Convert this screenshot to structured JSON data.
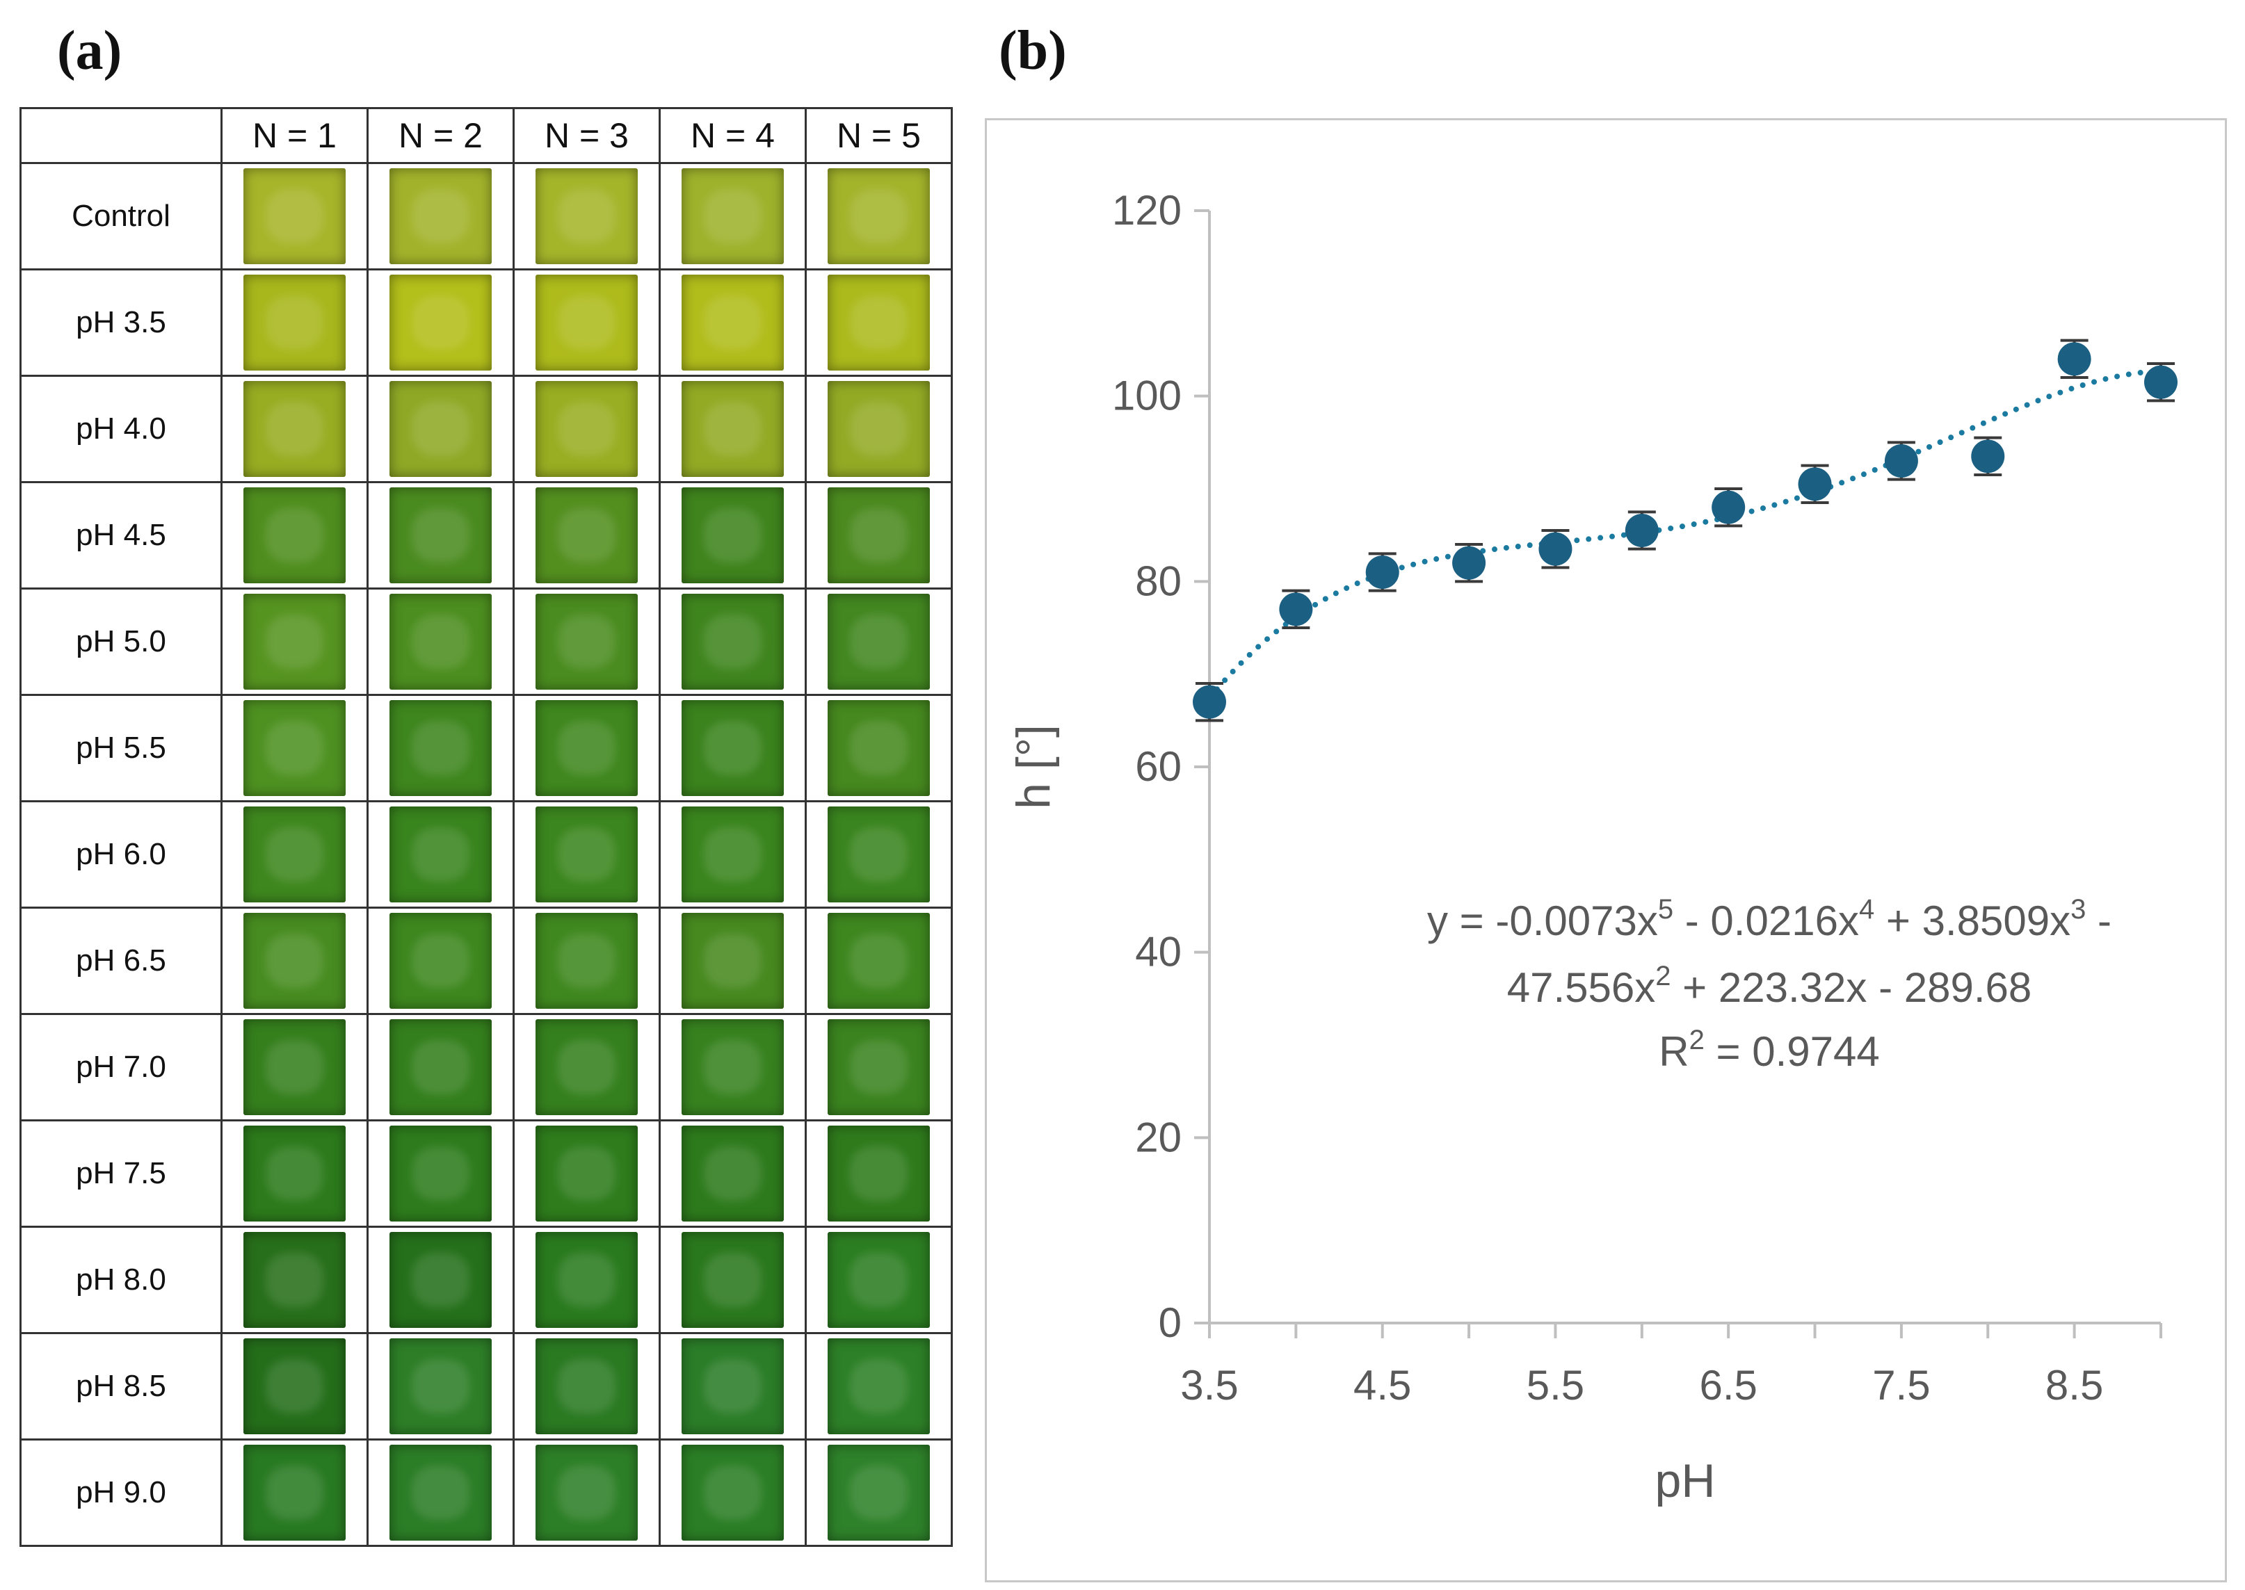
{
  "panel_a": {
    "label": "(a)",
    "columns": [
      "N = 1",
      "N = 2",
      "N = 3",
      "N = 4",
      "N = 5"
    ],
    "rows": [
      {
        "label": "Control",
        "colors": [
          "#a7b52a",
          "#a2b32b",
          "#a5b52a",
          "#9fb22c",
          "#a3b42b"
        ]
      },
      {
        "label": "pH 3.5",
        "colors": [
          "#a8b71c",
          "#b3bf1a",
          "#aebb1b",
          "#b1bd1b",
          "#acba1c"
        ]
      },
      {
        "label": "pH 4.0",
        "colors": [
          "#98ad22",
          "#8fa926",
          "#99ae22",
          "#92aa24",
          "#93aa25"
        ]
      },
      {
        "label": "pH 4.5",
        "colors": [
          "#4f8e1e",
          "#4a8b1f",
          "#538f1f",
          "#3f841d",
          "#4b8a1f"
        ]
      },
      {
        "label": "pH 5.0",
        "colors": [
          "#569420",
          "#4c8e1f",
          "#4a8c1f",
          "#3f851e",
          "#428720"
        ]
      },
      {
        "label": "pH 5.5",
        "colors": [
          "#4e9121",
          "#3e861e",
          "#3f871e",
          "#3a831d",
          "#46891f"
        ]
      },
      {
        "label": "pH 6.0",
        "colors": [
          "#3e871e",
          "#38841d",
          "#3b861e",
          "#3a851e",
          "#3a851f"
        ]
      },
      {
        "label": "pH 6.5",
        "colors": [
          "#478c20",
          "#3d871e",
          "#3f881f",
          "#47891f",
          "#3e871f"
        ]
      },
      {
        "label": "pH 7.0",
        "colors": [
          "#357f1d",
          "#347f1d",
          "#35801e",
          "#37821f",
          "#3a831f"
        ]
      },
      {
        "label": "pH 7.5",
        "colors": [
          "#2c7a1b",
          "#2d7b1c",
          "#2e7c1c",
          "#2d7a1c",
          "#2f7b1c"
        ]
      },
      {
        "label": "pH 8.0",
        "colors": [
          "#276f1a",
          "#25701b",
          "#297a1e",
          "#2a781d",
          "#2c7e22"
        ]
      },
      {
        "label": "pH 8.5",
        "colors": [
          "#246e1a",
          "#2d7e27",
          "#2a7a22",
          "#2b7d28",
          "#2d8027"
        ]
      },
      {
        "label": "pH 9.0",
        "colors": [
          "#287a22",
          "#2b7d26",
          "#2d7f27",
          "#2b7e25",
          "#2e822a"
        ]
      }
    ]
  },
  "panel_b": {
    "label": "(b)"
  },
  "chart_data": {
    "type": "scatter",
    "title": "",
    "xlabel": "pH",
    "ylabel": "h [°]",
    "xlim": [
      3.5,
      9.0
    ],
    "ylim": [
      0,
      120
    ],
    "xticks": [
      "3.5",
      "4.5",
      "5.5",
      "6.5",
      "7.5",
      "8.5"
    ],
    "xtick_values": [
      3.5,
      4.5,
      5.5,
      6.5,
      7.5,
      8.5
    ],
    "yticks": [
      "0",
      "20",
      "40",
      "60",
      "80",
      "100",
      "120"
    ],
    "ytick_values": [
      0,
      20,
      40,
      60,
      80,
      100,
      120
    ],
    "grid": false,
    "x": [
      3.5,
      4.0,
      4.5,
      5.0,
      5.5,
      6.0,
      6.5,
      7.0,
      7.5,
      8.0,
      8.5,
      9.0
    ],
    "y": [
      67,
      77,
      81,
      82,
      83.5,
      85.5,
      88,
      90.5,
      93,
      93.5,
      104,
      101.5
    ],
    "error": [
      2,
      2,
      2,
      2,
      2,
      2,
      2,
      2,
      2,
      2,
      2,
      2
    ],
    "marker_color": "#1b5f82",
    "trendline": {
      "type": "polynomial",
      "order": 5,
      "color": "#1b7aa0",
      "style": "dotted",
      "coefficients": [
        -289.68,
        223.32,
        -47.556,
        3.8509,
        -0.0216,
        -0.0073
      ],
      "equation_line1": "y = -0.0073x",
      "exp5": "5",
      "eq_part2": " - 0.0216x",
      "exp4": "4",
      "eq_part3": " + 3.8509x",
      "exp3": "3",
      "eq_part4": " -",
      "equation_line2": "47.556x",
      "exp2": "2",
      "eq_part5": " + 223.32x - 289.68",
      "r2_label": "R",
      "r2_exp": "2",
      "r2_value": " = 0.9744"
    }
  }
}
